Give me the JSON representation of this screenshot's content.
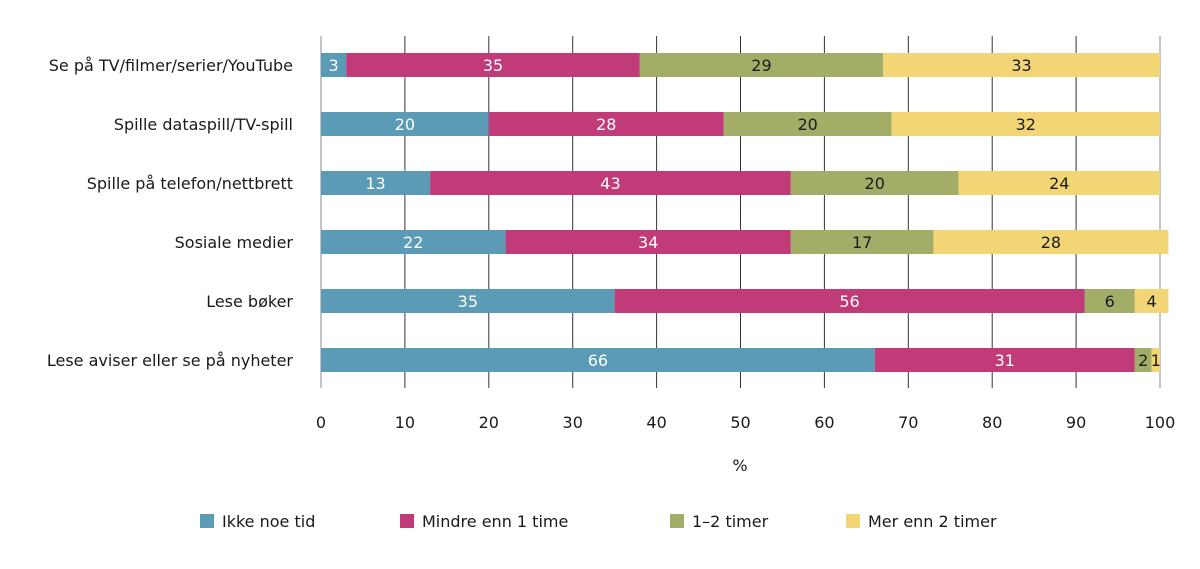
{
  "chart_data": {
    "type": "bar",
    "orientation": "horizontal",
    "stacked": true,
    "categories": [
      "Se på TV/filmer/serier/YouTube",
      "Spille dataspill/TV-spill",
      "Spille på telefon/nettbrett",
      "Sosiale medier",
      "Lese bøker",
      "Lese aviser eller se på nyheter"
    ],
    "series": [
      {
        "name": "Ikke noe tid",
        "color": "#5b9bb5",
        "label_color": "#ffffff",
        "values": [
          3,
          20,
          13,
          22,
          35,
          66
        ]
      },
      {
        "name": "Mindre enn 1 time",
        "color": "#c13b78",
        "label_color": "#ffffff",
        "values": [
          35,
          28,
          43,
          34,
          56,
          31
        ]
      },
      {
        "name": "1–2 timer",
        "color": "#a4ad68",
        "label_color": "#1a1a1a",
        "values": [
          29,
          20,
          20,
          17,
          6,
          2
        ]
      },
      {
        "name": "Mer enn 2 timer",
        "color": "#f2d574",
        "label_color": "#1a1a1a",
        "values": [
          33,
          32,
          24,
          28,
          4,
          1
        ]
      }
    ],
    "xlabel": "%",
    "xlim": [
      0,
      100
    ],
    "xticks": [
      "0",
      "10",
      "20",
      "30",
      "40",
      "50",
      "60",
      "70",
      "80",
      "90",
      "100"
    ],
    "grid": true,
    "legend": "bottom"
  }
}
